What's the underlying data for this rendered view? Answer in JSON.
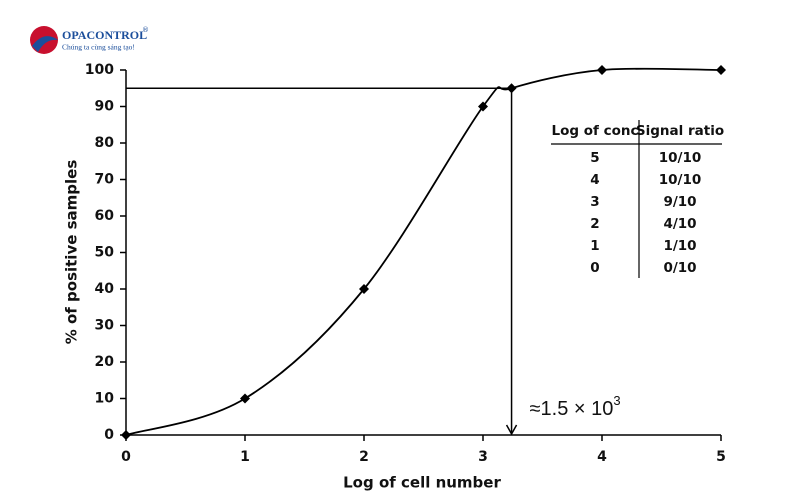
{
  "logo": {
    "name": "OPACONTROL",
    "mark": "®",
    "tagline": "Chúng ta cùng sáng tạo!"
  },
  "chart_data": {
    "type": "line",
    "x_label": "Log of cell number",
    "y_label": "% of positive samples",
    "series": [
      {
        "name": "Positive samples",
        "color": "#000000",
        "x": [
          0,
          1,
          2,
          3,
          3.24,
          4,
          5
        ],
        "values": [
          0,
          10,
          40,
          90,
          95,
          100,
          100
        ]
      }
    ],
    "xlim": [
      0,
      5
    ],
    "xticks": [
      0,
      1,
      2,
      3,
      4,
      5
    ],
    "ylim": [
      0,
      100
    ],
    "yticks": [
      0,
      10,
      20,
      30,
      40,
      50,
      60,
      70,
      80,
      90,
      100
    ],
    "reference": {
      "x": 3.24,
      "y": 95
    },
    "annotation": "≈1.5 × 10",
    "annotation_exponent": "3",
    "table": {
      "header": [
        "Log of conc",
        "Signal ratio"
      ],
      "rows": [
        [
          "5",
          "10/10"
        ],
        [
          "4",
          "10/10"
        ],
        [
          "3",
          "9/10"
        ],
        [
          "2",
          "4/10"
        ],
        [
          "1",
          "1/10"
        ],
        [
          "0",
          "0/10"
        ]
      ]
    }
  }
}
